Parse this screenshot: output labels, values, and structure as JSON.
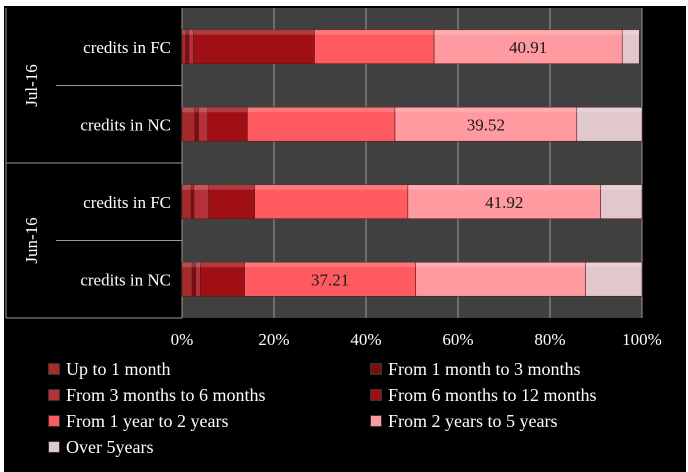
{
  "chart_data": {
    "type": "bar",
    "orientation": "horizontal",
    "stacked": "100%",
    "groups": [
      {
        "label": "Jul-16",
        "categories": [
          "credits in FC",
          "credits in NC"
        ]
      },
      {
        "label": "Jun-16",
        "categories": [
          "credits in FC",
          "credits in NC"
        ]
      }
    ],
    "rows": [
      {
        "group": "Jul-16",
        "category": "credits in FC"
      },
      {
        "group": "Jul-16",
        "category": "credits in NC"
      },
      {
        "group": "Jun-16",
        "category": "credits in FC"
      },
      {
        "group": "Jun-16",
        "category": "credits in NC"
      }
    ],
    "series": [
      {
        "name": "Up to 1 month",
        "color": "#a52a2a",
        "values": [
          0.8,
          2.8,
          2.0,
          2.2
        ]
      },
      {
        "name": "From 1 month to 3 months",
        "color": "#7a0e12",
        "values": [
          0.7,
          0.8,
          0.6,
          0.8
        ]
      },
      {
        "name": "From 3 months to 6 months",
        "color": "#b5303a",
        "values": [
          1.0,
          2.0,
          3.2,
          1.0
        ]
      },
      {
        "name": "From 6 months to 12 months",
        "color": "#a00f14",
        "values": [
          26.3,
          8.6,
          10.0,
          9.6
        ]
      },
      {
        "name": "From 1 year to 2 years",
        "color": "#ff5a5f",
        "values": [
          26.0,
          32.1,
          33.3,
          37.21
        ]
      },
      {
        "name": "From 2 years to 5 years",
        "color": "#ff9aa0",
        "values": [
          40.91,
          39.52,
          41.92,
          36.9
        ]
      },
      {
        "name": "Over 5years",
        "color": "#e0c8cc",
        "values": [
          3.7,
          14.2,
          8.98,
          12.29
        ]
      }
    ],
    "data_labels": [
      {
        "row": 0,
        "series": "From 2 years to 5 years",
        "text": "40.91"
      },
      {
        "row": 1,
        "series": "From 2 years to 5 years",
        "text": "39.52"
      },
      {
        "row": 2,
        "series": "From 2 years to 5 years",
        "text": "41.92"
      },
      {
        "row": 3,
        "series": "From 1 year to 2 years",
        "text": "37.21"
      }
    ],
    "x_ticks": [
      "0%",
      "20%",
      "40%",
      "60%",
      "80%",
      "100%"
    ],
    "xlim": [
      0,
      100
    ],
    "grid": "vertical",
    "legend_position": "bottom",
    "background": "#000000",
    "plot_background": "#404040"
  }
}
